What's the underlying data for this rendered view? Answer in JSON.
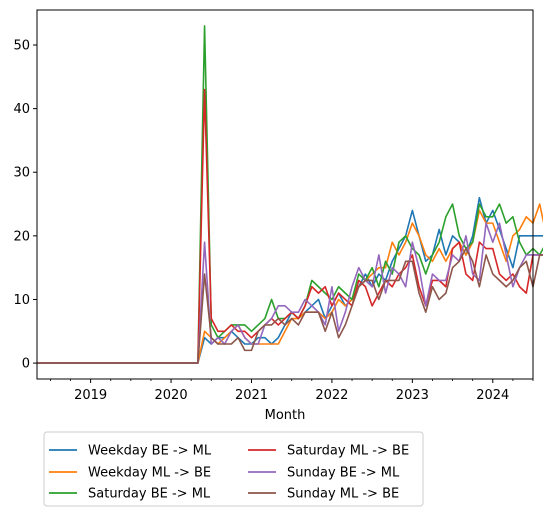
{
  "chart_data": {
    "type": "line",
    "title": "",
    "xlabel": "Month",
    "ylabel": "",
    "x_start": "2018-05",
    "x_end": "2024-07",
    "xlim": [
      "2018-05",
      "2024-07"
    ],
    "ylim": [
      -2.5,
      55.5
    ],
    "xticks": [
      {
        "date": "2019-01",
        "label": "2019"
      },
      {
        "date": "2020-01",
        "label": "2020"
      },
      {
        "date": "2021-01",
        "label": "2021"
      },
      {
        "date": "2022-01",
        "label": "2022"
      },
      {
        "date": "2023-01",
        "label": "2023"
      },
      {
        "date": "2024-01",
        "label": "2024"
      }
    ],
    "yticks": [
      0,
      10,
      20,
      30,
      40,
      50
    ],
    "grid": false,
    "legend_position": "below",
    "legend_columns": 2,
    "series": [
      {
        "name": "Weekday BE -> ML",
        "color": "#1f77b4",
        "values": [
          0,
          0,
          0,
          0,
          0,
          0,
          0,
          0,
          0,
          0,
          0,
          0,
          0,
          0,
          0,
          0,
          0,
          0,
          0,
          0,
          0,
          0,
          0,
          0,
          0,
          4,
          3,
          4,
          4,
          5,
          4,
          3,
          3,
          4,
          4,
          3,
          4,
          6,
          8,
          7,
          8,
          9,
          10,
          7,
          9,
          11,
          9,
          10,
          12,
          14,
          12,
          14,
          13,
          16,
          18,
          20,
          24,
          20,
          16,
          17,
          21,
          17,
          20,
          19,
          17,
          20,
          26,
          22,
          24,
          21,
          18,
          15,
          20,
          20,
          20,
          20,
          20,
          19,
          21
        ]
      },
      {
        "name": "Weekday ML -> BE",
        "color": "#ff7f0e",
        "values": [
          0,
          0,
          0,
          0,
          0,
          0,
          0,
          0,
          0,
          0,
          0,
          0,
          0,
          0,
          0,
          0,
          0,
          0,
          0,
          0,
          0,
          0,
          0,
          0,
          0,
          5,
          4,
          3,
          4,
          5,
          6,
          4,
          3,
          3,
          3,
          3,
          3,
          5,
          7,
          7,
          8,
          8,
          8,
          7,
          8,
          10,
          9,
          10,
          12,
          13,
          14,
          15,
          15,
          19,
          17,
          19,
          22,
          20,
          17,
          16,
          18,
          16,
          18,
          19,
          17,
          19,
          24,
          22,
          22,
          19,
          16,
          20,
          21,
          23,
          22,
          25,
          20,
          19,
          20
        ]
      },
      {
        "name": "Saturday BE -> ML",
        "color": "#2ca02c",
        "values": [
          0,
          0,
          0,
          0,
          0,
          0,
          0,
          0,
          0,
          0,
          0,
          0,
          0,
          0,
          0,
          0,
          0,
          0,
          0,
          0,
          0,
          0,
          0,
          0,
          0,
          53,
          6,
          4,
          5,
          6,
          6,
          6,
          5,
          6,
          7,
          10,
          7,
          7,
          8,
          7,
          9,
          13,
          12,
          11,
          10,
          12,
          11,
          10,
          14,
          13,
          15,
          12,
          16,
          14,
          19,
          20,
          18,
          17,
          14,
          17,
          19,
          23,
          25,
          20,
          18,
          19,
          25,
          23,
          23,
          25,
          22,
          23,
          19,
          17,
          18,
          17,
          19,
          20,
          22
        ]
      },
      {
        "name": "Saturday ML -> BE",
        "color": "#d62728",
        "values": [
          0,
          0,
          0,
          0,
          0,
          0,
          0,
          0,
          0,
          0,
          0,
          0,
          0,
          0,
          0,
          0,
          0,
          0,
          0,
          0,
          0,
          0,
          0,
          0,
          0,
          43,
          7,
          5,
          5,
          6,
          5,
          5,
          4,
          5,
          6,
          7,
          6,
          7,
          8,
          7,
          9,
          12,
          11,
          12,
          9,
          11,
          10,
          9,
          13,
          12,
          9,
          11,
          13,
          12,
          14,
          15,
          17,
          12,
          9,
          13,
          13,
          12,
          18,
          19,
          14,
          13,
          19,
          18,
          18,
          14,
          13,
          14,
          12,
          11,
          17,
          17,
          17,
          20,
          18
        ]
      },
      {
        "name": "Sunday BE -> ML",
        "color": "#9467bd",
        "values": [
          0,
          0,
          0,
          0,
          0,
          0,
          0,
          0,
          0,
          0,
          0,
          0,
          0,
          0,
          0,
          0,
          0,
          0,
          0,
          0,
          0,
          0,
          0,
          0,
          0,
          19,
          3,
          4,
          3,
          5,
          6,
          4,
          3,
          3,
          6,
          7,
          9,
          9,
          8,
          8,
          10,
          9,
          8,
          6,
          12,
          5,
          8,
          12,
          15,
          13,
          12,
          17,
          11,
          15,
          14,
          12,
          19,
          15,
          9,
          14,
          13,
          13,
          17,
          16,
          20,
          14,
          13,
          22,
          19,
          22,
          17,
          12,
          15,
          17,
          17,
          17,
          17,
          16,
          19
        ]
      },
      {
        "name": "Sunday ML -> BE",
        "color": "#8c564b",
        "values": [
          0,
          0,
          0,
          0,
          0,
          0,
          0,
          0,
          0,
          0,
          0,
          0,
          0,
          0,
          0,
          0,
          0,
          0,
          0,
          0,
          0,
          0,
          0,
          0,
          0,
          14,
          4,
          3,
          3,
          3,
          4,
          2,
          2,
          5,
          6,
          6,
          7,
          6,
          7,
          6,
          8,
          8,
          8,
          5,
          8,
          4,
          6,
          9,
          12,
          13,
          13,
          10,
          13,
          13,
          13,
          16,
          16,
          11,
          8,
          12,
          10,
          11,
          15,
          16,
          18,
          16,
          12,
          17,
          14,
          13,
          12,
          13,
          15,
          16,
          12,
          17,
          17,
          16,
          14
        ]
      }
    ]
  }
}
